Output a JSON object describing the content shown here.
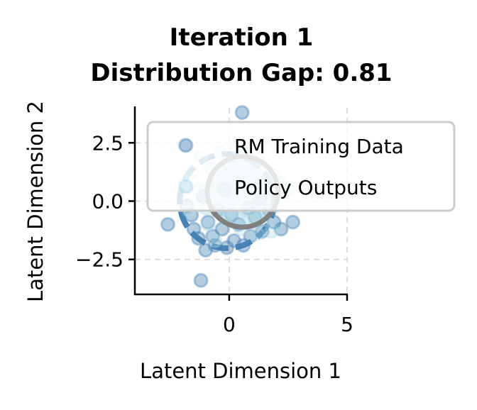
{
  "chart_data": {
    "type": "scatter",
    "title_line1": "Iteration 1",
    "title_line2": "Distribution Gap: 0.81",
    "xlabel": "Latent Dimension 1",
    "ylabel": "Latent Dimension 2",
    "xlim": [
      -4,
      5
    ],
    "ylim": [
      -4,
      4
    ],
    "xticks": [
      {
        "value": 0,
        "label": "0"
      },
      {
        "value": 5,
        "label": "5"
      }
    ],
    "yticks": [
      {
        "value": 2.5,
        "label": "2.5"
      },
      {
        "value": 0,
        "label": "0.0"
      },
      {
        "value": -2.5,
        "label": "−2.5"
      }
    ],
    "grid": true,
    "legend_placement": "upper-right",
    "colors": {
      "rm": "#4682b4",
      "policy": "#add8e6",
      "policy_circle": "#808080"
    },
    "series": [
      {
        "name": "RM Training Data",
        "points": [
          [
            0.55,
            3.8
          ],
          [
            -1.9,
            2.4
          ],
          [
            -2.6,
            -1.0
          ],
          [
            -1.2,
            -3.4
          ],
          [
            2.7,
            -0.9
          ],
          [
            2.2,
            -1.2
          ],
          [
            -1.0,
            -2.1
          ],
          [
            -1.3,
            -1.6
          ],
          [
            -0.6,
            -1.9
          ],
          [
            0.2,
            -1.7
          ],
          [
            0.9,
            -1.5
          ],
          [
            1.4,
            -1.3
          ],
          [
            -1.6,
            -0.6
          ],
          [
            -0.9,
            -0.9
          ],
          [
            -0.3,
            -1.2
          ],
          [
            0.4,
            -1.0
          ],
          [
            1.1,
            -0.7
          ],
          [
            1.7,
            -0.4
          ],
          [
            -1.5,
            -1.2
          ],
          [
            -0.5,
            -0.4
          ],
          [
            0.1,
            -0.6
          ],
          [
            0.8,
            -0.3
          ],
          [
            -1.1,
            0.2
          ],
          [
            -0.2,
            0.5
          ],
          [
            1.3,
            0.1
          ],
          [
            -0.7,
            -1.5
          ],
          [
            0.6,
            -1.9
          ],
          [
            -1.8,
            -0.2
          ],
          [
            1.9,
            -0.9
          ],
          [
            -0.1,
            -2.0
          ]
        ],
        "circle": {
          "cx": -0.1,
          "cy": 0.0,
          "r": 2.0
        }
      },
      {
        "name": "Policy Outputs",
        "points": [
          [
            -1.9,
            0.7
          ],
          [
            2.5,
            0.5
          ],
          [
            -1.2,
            1.9
          ],
          [
            -0.4,
            2.1
          ],
          [
            0.3,
            2.3
          ],
          [
            1.2,
            1.8
          ],
          [
            1.9,
            1.1
          ],
          [
            -1.6,
            1.2
          ],
          [
            -0.8,
            1.4
          ],
          [
            0.0,
            1.6
          ],
          [
            0.9,
            1.3
          ],
          [
            1.6,
            0.4
          ],
          [
            -1.3,
            0.5
          ],
          [
            -0.5,
            0.8
          ],
          [
            0.4,
            0.9
          ],
          [
            1.0,
            0.5
          ],
          [
            2.0,
            -0.2
          ],
          [
            -1.0,
            -0.3
          ],
          [
            0.2,
            0.1
          ],
          [
            0.7,
            -0.4
          ],
          [
            1.5,
            -0.8
          ],
          [
            -0.2,
            -0.7
          ],
          [
            0.5,
            -1.2
          ],
          [
            1.2,
            -1.4
          ],
          [
            -0.9,
            -1.0
          ],
          [
            2.2,
            0.8
          ],
          [
            -1.7,
            -0.4
          ],
          [
            0.8,
            1.9
          ],
          [
            -0.6,
            -1.7
          ],
          [
            1.8,
            -1.3
          ]
        ],
        "circle": {
          "cx": 0.57,
          "cy": 0.4,
          "r": 1.5
        }
      }
    ]
  }
}
